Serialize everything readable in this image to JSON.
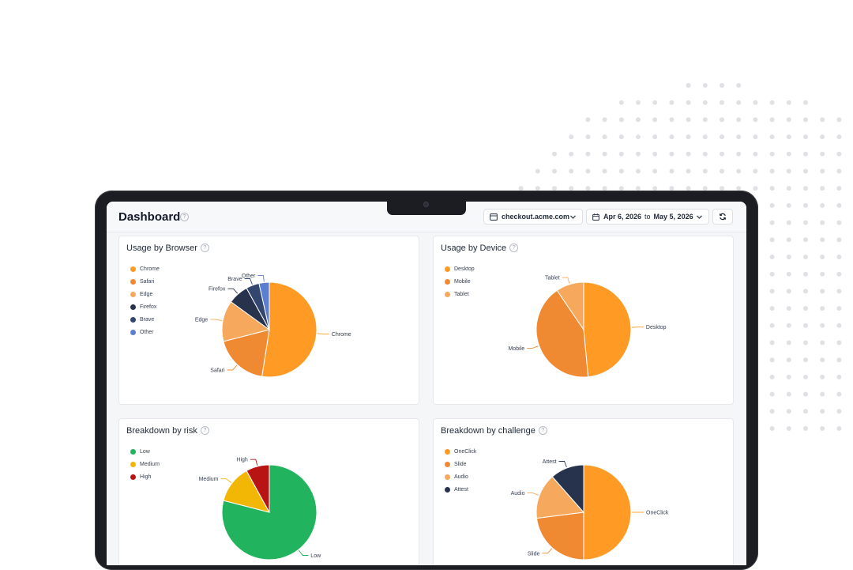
{
  "header": {
    "title": "Dashboard",
    "help_glyph": "?",
    "site": "checkout.acme.com",
    "date_from": "Apr 6, 2026",
    "date_sep": "to",
    "date_to": "May 5, 2026",
    "icons": {
      "site": "browser-window-icon",
      "site_chevron": "chevron-down-icon",
      "date": "calendar-icon",
      "date_chevron": "chevron-down-icon",
      "refresh": "refresh-icon"
    }
  },
  "colors": {
    "orange": "#ff9b24",
    "dark_orange": "#f08a32",
    "light_orange": "#f6a95c",
    "navy": "#27324d",
    "dark_blue": "#324670",
    "blue": "#5a7fd0",
    "green": "#22b35e",
    "yellow": "#f2b705",
    "red": "#b81414"
  },
  "charts": [
    {
      "title": "Usage by Browser",
      "chart_data": {
        "type": "pie",
        "slices": [
          {
            "label": "Chrome",
            "value": 52.5,
            "color": "#ff9b24"
          },
          {
            "label": "Safari",
            "value": 18.5,
            "color": "#f08a32"
          },
          {
            "label": "Edge",
            "value": 14,
            "color": "#f6a95c"
          },
          {
            "label": "Firefox",
            "value": 7,
            "color": "#27324d"
          },
          {
            "label": "Brave",
            "value": 4.5,
            "color": "#324670"
          },
          {
            "label": "Other",
            "value": 3.5,
            "color": "#5a7fd0"
          }
        ]
      }
    },
    {
      "title": "Usage by Device",
      "chart_data": {
        "type": "pie",
        "slices": [
          {
            "label": "Desktop",
            "value": 48.5,
            "color": "#ff9b24"
          },
          {
            "label": "Mobile",
            "value": 42,
            "color": "#f08a32"
          },
          {
            "label": "Tablet",
            "value": 9.5,
            "color": "#f6a95c"
          }
        ]
      }
    },
    {
      "title": "Breakdown by risk",
      "chart_data": {
        "type": "pie",
        "slices": [
          {
            "label": "Low",
            "value": 79,
            "color": "#22b35e"
          },
          {
            "label": "Medium",
            "value": 13,
            "color": "#f2b705"
          },
          {
            "label": "High",
            "value": 8,
            "color": "#b81414"
          }
        ]
      }
    },
    {
      "title": "Breakdown by challenge",
      "chart_data": {
        "type": "pie",
        "slices": [
          {
            "label": "OneClick",
            "value": 50,
            "color": "#ff9b24"
          },
          {
            "label": "Slide",
            "value": 23,
            "color": "#f08a32"
          },
          {
            "label": "Audio",
            "value": 15.5,
            "color": "#f6a95c"
          },
          {
            "label": "Attest",
            "value": 11.5,
            "color": "#27324d"
          }
        ]
      }
    }
  ]
}
